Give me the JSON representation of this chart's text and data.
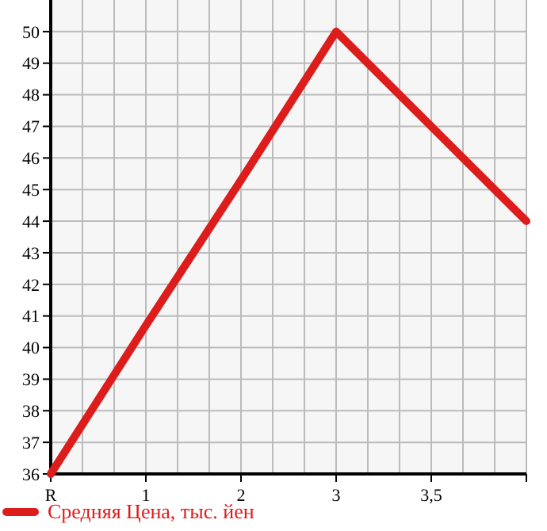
{
  "chart_data": {
    "type": "line",
    "categories": [
      "R",
      "1",
      "2",
      "3",
      "3,5",
      null
    ],
    "series": [
      {
        "name": "Средняя Цена, тыс. йен",
        "color": "#dd1c1c",
        "values": [
          36,
          40.7,
          45.3,
          50,
          47,
          44
        ]
      }
    ],
    "ylim": [
      36,
      51
    ],
    "yticks": [
      36,
      37,
      38,
      39,
      40,
      41,
      42,
      43,
      44,
      45,
      46,
      47,
      48,
      49,
      50
    ],
    "grid": true,
    "legend": "bottom",
    "marker": "none",
    "line_style": "solid"
  }
}
